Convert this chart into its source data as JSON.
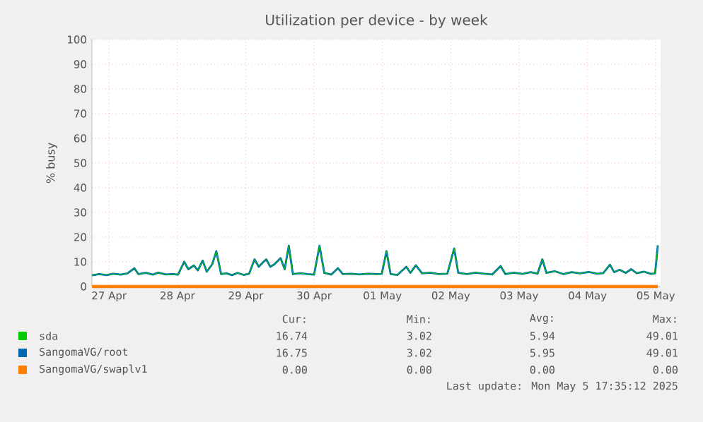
{
  "chart_data": {
    "type": "line",
    "title": "Utilization per device - by week",
    "ylabel": "% busy",
    "x": [
      "2025-04-27T06:00",
      "2025-04-27T08:38",
      "2025-04-27T11:02",
      "2025-04-27T13:26",
      "2025-04-27T16:05",
      "2025-04-27T18:29",
      "2025-04-27T20:53",
      "2025-04-27T22:19",
      "2025-04-28T00:58",
      "2025-04-28T03:22",
      "2025-04-28T05:17",
      "2025-04-28T07:55",
      "2025-04-28T10:19",
      "2025-04-28T12:14",
      "2025-04-28T14:24",
      "2025-04-28T15:50",
      "2025-04-28T17:46",
      "2025-04-28T19:12",
      "2025-04-28T20:53",
      "2025-04-28T22:19",
      "2025-04-29T00:14",
      "2025-04-29T01:41",
      "2025-04-29T03:22",
      "2025-04-29T05:17",
      "2025-04-29T07:12",
      "2025-04-29T09:07",
      "2025-04-29T11:17",
      "2025-04-29T13:12",
      "2025-04-29T15:07",
      "2025-04-29T16:34",
      "2025-04-29T18:14",
      "2025-04-29T19:12",
      "2025-04-29T20:38",
      "2025-04-29T22:05",
      "2025-04-30T00:14",
      "2025-04-30T01:41",
      "2025-04-30T03:07",
      "2025-04-30T04:34",
      "2025-04-30T07:12",
      "2025-04-30T09:36",
      "2025-04-30T12:00",
      "2025-04-30T13:55",
      "2025-04-30T15:36",
      "2025-04-30T18:00",
      "2025-04-30T20:24",
      "2025-04-30T22:05",
      "2025-05-01T00:58",
      "2025-05-01T03:50",
      "2025-05-01T06:58",
      "2025-05-01T09:50",
      "2025-05-01T11:46",
      "2025-05-01T13:26",
      "2025-05-01T14:53",
      "2025-05-01T17:17",
      "2025-05-01T20:24",
      "2025-05-01T21:50",
      "2025-05-01T23:46",
      "2025-05-02T01:55",
      "2025-05-02T04:48",
      "2025-05-02T07:41",
      "2025-05-02T10:48",
      "2025-05-02T13:12",
      "2025-05-02T14:38",
      "2025-05-02T17:46",
      "2025-05-02T20:38",
      "2025-05-02T23:46",
      "2025-05-03T02:38",
      "2025-05-03T05:31",
      "2025-05-03T07:12",
      "2025-05-03T10:05",
      "2025-05-03T13:12",
      "2025-05-03T16:05",
      "2025-05-03T18:29",
      "2025-05-03T20:10",
      "2025-05-03T21:36",
      "2025-05-04T00:29",
      "2025-05-04T03:36",
      "2025-05-04T06:29",
      "2025-05-04T09:22",
      "2025-05-04T12:29",
      "2025-05-04T15:22",
      "2025-05-04T17:31",
      "2025-05-04T19:55",
      "2025-05-04T21:22",
      "2025-05-04T23:17",
      "2025-05-05T01:26",
      "2025-05-05T03:22",
      "2025-05-05T05:17",
      "2025-05-05T07:55",
      "2025-05-05T10:19",
      "2025-05-05T11:46",
      "2025-05-05T12:43"
    ],
    "series": [
      {
        "name": "sda",
        "color": "#00cc00",
        "values": [
          4.5,
          5,
          4.6,
          5.2,
          4.8,
          5.3,
          7.4,
          5,
          5.5,
          4.8,
          5.6,
          4.9,
          5,
          4.8,
          10,
          7,
          8.5,
          6.5,
          10.5,
          6,
          9,
          14.3,
          5,
          5.3,
          4.6,
          5.5,
          4.7,
          5.2,
          11,
          8,
          10,
          11,
          8,
          9,
          11.5,
          7,
          16.5,
          5,
          5.4,
          5,
          4.8,
          16.5,
          5.5,
          4.8,
          7.4,
          5,
          5.2,
          4.9,
          5.2,
          5,
          5.1,
          14.3,
          5,
          4.7,
          8,
          5.5,
          8.6,
          5.3,
          5.6,
          5,
          5.2,
          15.4,
          5.5,
          5,
          5.6,
          5.2,
          4.9,
          8.3,
          5,
          5.6,
          5.1,
          5.8,
          5.2,
          11,
          5.5,
          6.2,
          5,
          5.8,
          5.3,
          5.9,
          5.2,
          5.4,
          8.8,
          5.8,
          6.8,
          5.5,
          7,
          5.4,
          6,
          5.1,
          5.3,
          16.7
        ]
      },
      {
        "name": "SangomaVG/root",
        "color": "#0066b3",
        "values": [
          4.5,
          5,
          4.6,
          5.2,
          4.8,
          5.3,
          7.4,
          5,
          5.5,
          4.8,
          5.6,
          4.9,
          5,
          4.8,
          10,
          7,
          8.5,
          6.5,
          10.5,
          6,
          9,
          14.3,
          5,
          5.3,
          4.6,
          5.5,
          4.7,
          5.2,
          11,
          8,
          10,
          11,
          8,
          9,
          11.5,
          7,
          16.5,
          5,
          5.4,
          5,
          4.8,
          16.5,
          5.5,
          4.8,
          7.4,
          5,
          5.2,
          4.9,
          5.2,
          5,
          5.1,
          14.3,
          5,
          4.7,
          8,
          5.5,
          8.6,
          5.3,
          5.6,
          5,
          5.2,
          15.4,
          5.5,
          5,
          5.6,
          5.2,
          4.9,
          8.3,
          5,
          5.6,
          5.1,
          5.8,
          5.2,
          11,
          5.5,
          6.2,
          5,
          5.8,
          5.3,
          5.9,
          5.2,
          5.4,
          8.8,
          5.8,
          6.8,
          5.5,
          7,
          5.4,
          6,
          5.1,
          5.3,
          16.7
        ]
      },
      {
        "name": "SangomaVG/swaplv1",
        "color": "#ff8000",
        "x": [
          "2025-04-27T06:00",
          "2025-05-05T12:43"
        ],
        "values": [
          0,
          0
        ]
      }
    ],
    "xlim": [
      "2025-04-27T06:00",
      "2025-05-05T13:41"
    ],
    "xticks": [
      {
        "value": "2025-04-27T12:00",
        "label": "27 Apr"
      },
      {
        "value": "2025-04-28T12:00",
        "label": "28 Apr"
      },
      {
        "value": "2025-04-29T12:00",
        "label": "29 Apr"
      },
      {
        "value": "2025-04-30T12:00",
        "label": "30 Apr"
      },
      {
        "value": "2025-05-01T12:00",
        "label": "01 May"
      },
      {
        "value": "2025-05-02T12:00",
        "label": "02 May"
      },
      {
        "value": "2025-05-03T12:00",
        "label": "03 May"
      },
      {
        "value": "2025-05-04T12:00",
        "label": "04 May"
      },
      {
        "value": "2025-05-05T12:00",
        "label": "05 May"
      }
    ],
    "ylim": [
      0,
      100
    ],
    "yticks": [
      0,
      10,
      20,
      30,
      40,
      50,
      60,
      70,
      80,
      90,
      100
    ],
    "grid": true,
    "legend": "bottom",
    "annotations": [
      "Cur:",
      "Min:",
      "Avg:",
      "Max:",
      "16.74",
      "3.02",
      "5.94",
      "49.01",
      "16.75",
      "3.02",
      "5.95",
      "49.01",
      "0.00",
      "0.00",
      "0.00",
      "0.00",
      "Last update: Mon May  5 17:35:12 2025"
    ]
  }
}
